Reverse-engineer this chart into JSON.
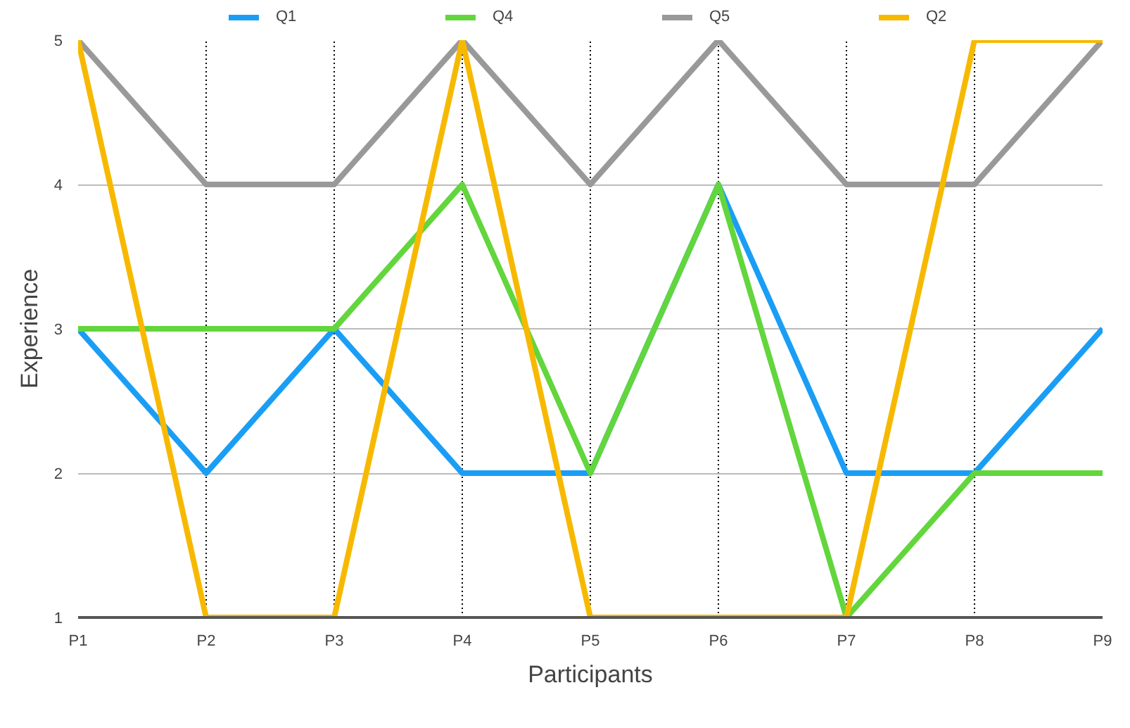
{
  "chart_data": {
    "type": "line",
    "xlabel": "Participants",
    "ylabel": "Experience",
    "categories": [
      "P1",
      "P2",
      "P3",
      "P4",
      "P5",
      "P6",
      "P7",
      "P8",
      "P9"
    ],
    "series": [
      {
        "name": "Q1",
        "color": "#1a9ef5",
        "values": [
          3,
          2,
          3,
          2,
          2,
          4,
          2,
          2,
          3
        ]
      },
      {
        "name": "Q4",
        "color": "#62d63c",
        "values": [
          3,
          3,
          3,
          4,
          2,
          4,
          1,
          2,
          2
        ]
      },
      {
        "name": "Q5",
        "color": "#999999",
        "values": [
          5,
          4,
          4,
          5,
          4,
          5,
          4,
          4,
          5
        ]
      },
      {
        "name": "Q2",
        "color": "#f7b900",
        "values": [
          5,
          1,
          1,
          5,
          1,
          1,
          1,
          5,
          5
        ]
      }
    ],
    "ylim": [
      1,
      5
    ],
    "yticks": [
      1,
      2,
      3,
      4,
      5
    ],
    "grid": true,
    "legend": "top",
    "marker": "none",
    "line_style": "solid"
  }
}
